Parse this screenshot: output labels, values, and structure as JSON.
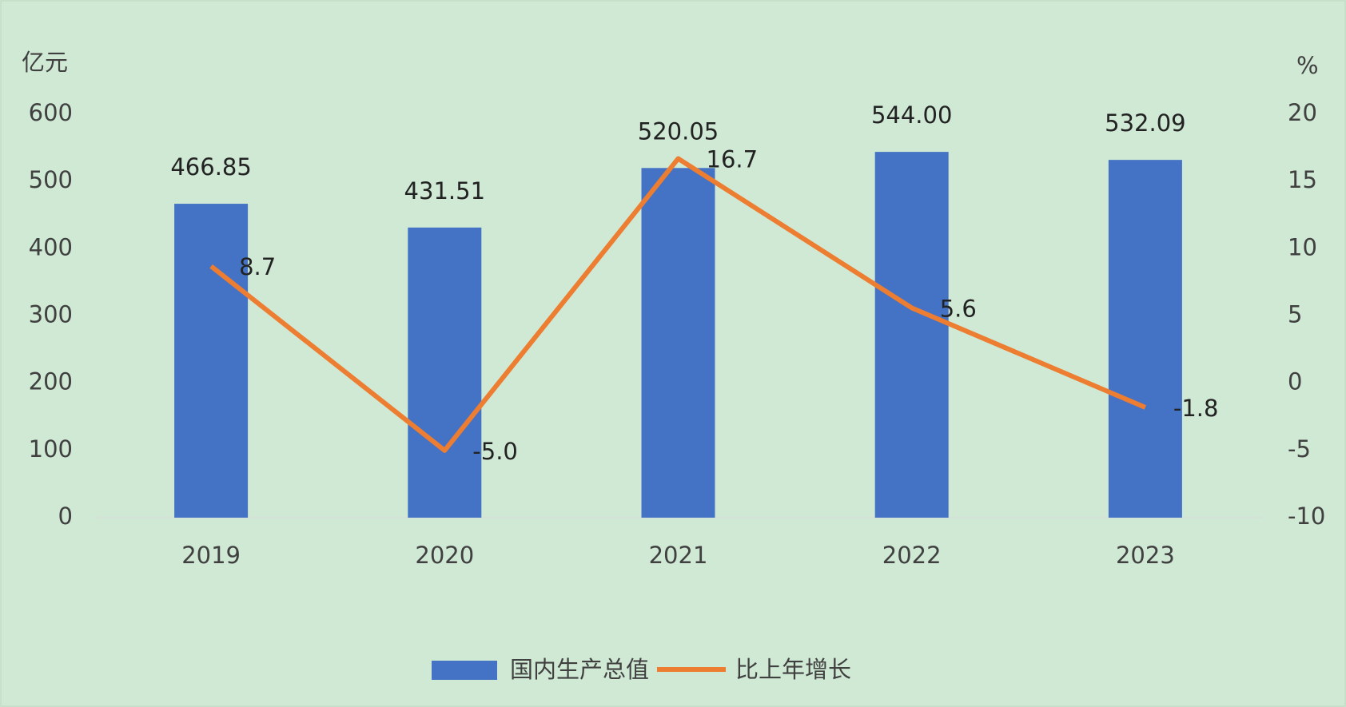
{
  "chart_data": {
    "type": "bar",
    "y_label": "亿元",
    "y2_label": "%",
    "categories": [
      "2019",
      "2020",
      "2021",
      "2022",
      "2023"
    ],
    "series": [
      {
        "name": "国内生产总值",
        "color": "#4472c4",
        "values": [
          466.85,
          431.51,
          520.05,
          544.0,
          532.09
        ],
        "value_labels": [
          "466.85",
          "431.51",
          "520.05",
          "544.00",
          "532.09"
        ]
      },
      {
        "name": "比上年增长",
        "color": "#ed7d31",
        "type": "line",
        "axis": "y2",
        "values": [
          8.7,
          -5.0,
          16.7,
          5.6,
          -1.8
        ],
        "value_labels": [
          "8.7",
          "-5.0",
          "16.7",
          "5.6",
          "-1.8"
        ]
      }
    ],
    "ylim": [
      0,
      600
    ],
    "yticks": [
      0,
      100,
      200,
      300,
      400,
      500,
      600
    ],
    "y2lim": [
      -10,
      20
    ],
    "y2ticks": [
      -10,
      -5,
      0,
      5,
      10,
      15,
      20
    ],
    "legend": "bottom"
  }
}
